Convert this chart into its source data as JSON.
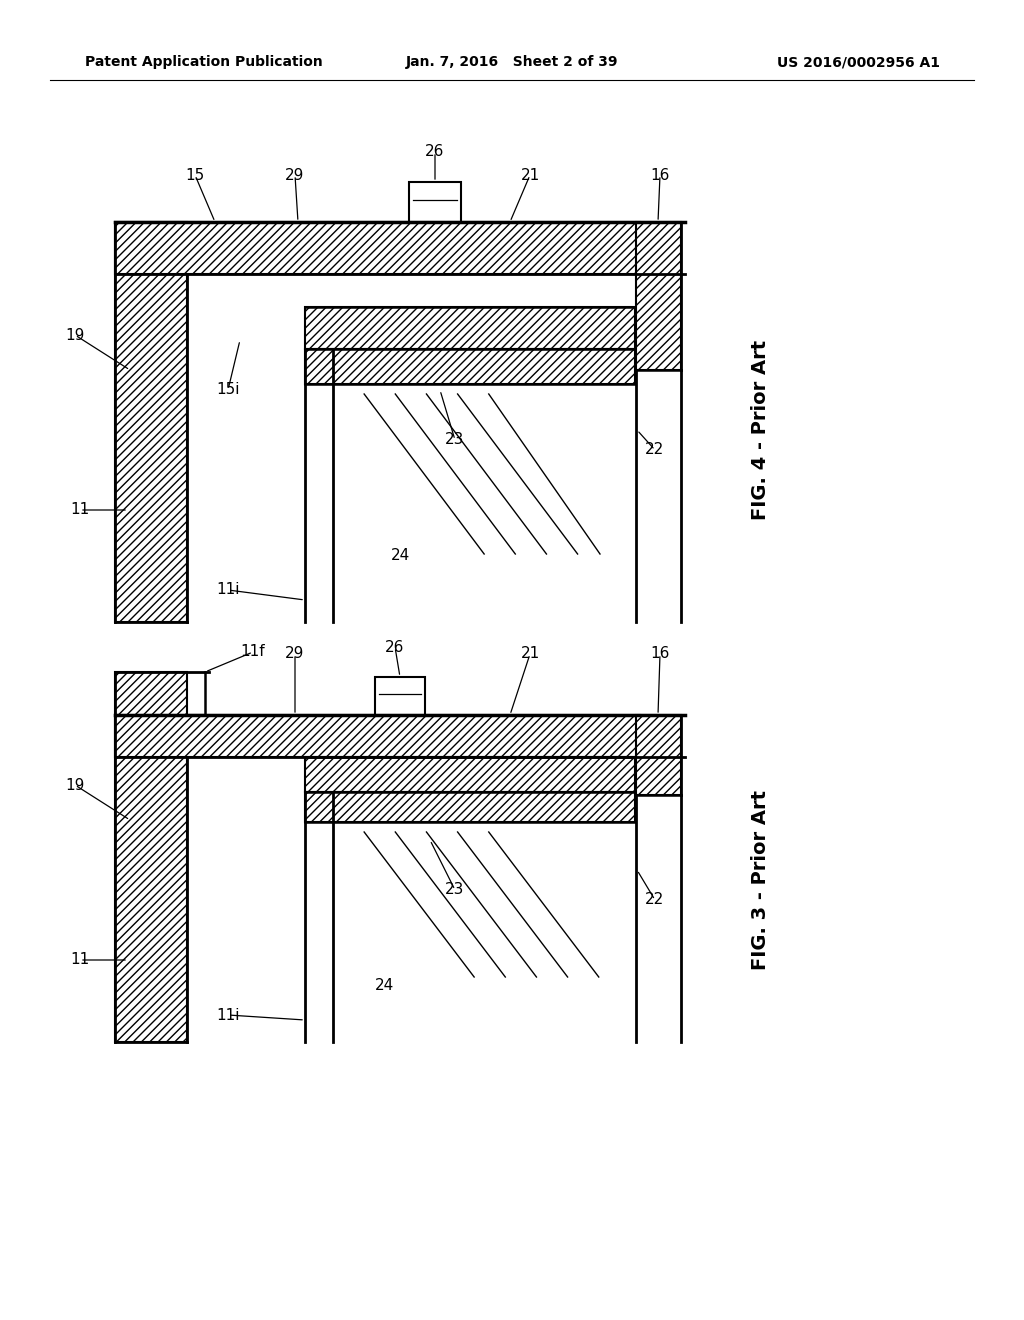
{
  "bg_color": "#ffffff",
  "line_color": "#000000",
  "header_left": "Patent Application Publication",
  "header_mid": "Jan. 7, 2016   Sheet 2 of 39",
  "header_right": "US 2016/0002956 A1",
  "fig4_label": "FIG. 4 - Prior Art",
  "fig3_label": "FIG. 3 - Prior Art"
}
